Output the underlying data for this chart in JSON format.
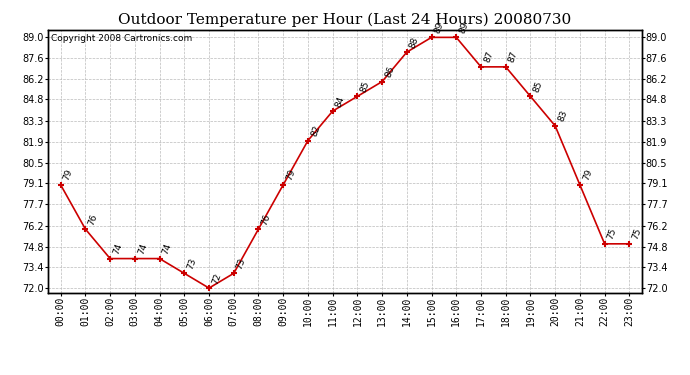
{
  "title": "Outdoor Temperature per Hour (Last 24 Hours) 20080730",
  "copyright": "Copyright 2008 Cartronics.com",
  "hours": [
    "00:00",
    "01:00",
    "02:00",
    "03:00",
    "04:00",
    "05:00",
    "06:00",
    "07:00",
    "08:00",
    "09:00",
    "10:00",
    "11:00",
    "12:00",
    "13:00",
    "14:00",
    "15:00",
    "16:00",
    "17:00",
    "18:00",
    "19:00",
    "20:00",
    "21:00",
    "22:00",
    "23:00"
  ],
  "temps": [
    79,
    76,
    74,
    74,
    74,
    73,
    72,
    73,
    76,
    79,
    82,
    84,
    85,
    86,
    88,
    89,
    89,
    87,
    87,
    85,
    83,
    79,
    75,
    75
  ],
  "ylim_min": 72.0,
  "ylim_max": 89.0,
  "line_color": "#cc0000",
  "marker_color": "#cc0000",
  "bg_color": "#ffffff",
  "grid_color": "#bbbbbb",
  "title_fontsize": 11,
  "copyright_fontsize": 6.5,
  "label_fontsize": 6.5,
  "tick_fontsize": 7,
  "yticks": [
    72.0,
    73.4,
    74.8,
    76.2,
    77.7,
    79.1,
    80.5,
    81.9,
    83.3,
    84.8,
    86.2,
    87.6,
    89.0
  ]
}
